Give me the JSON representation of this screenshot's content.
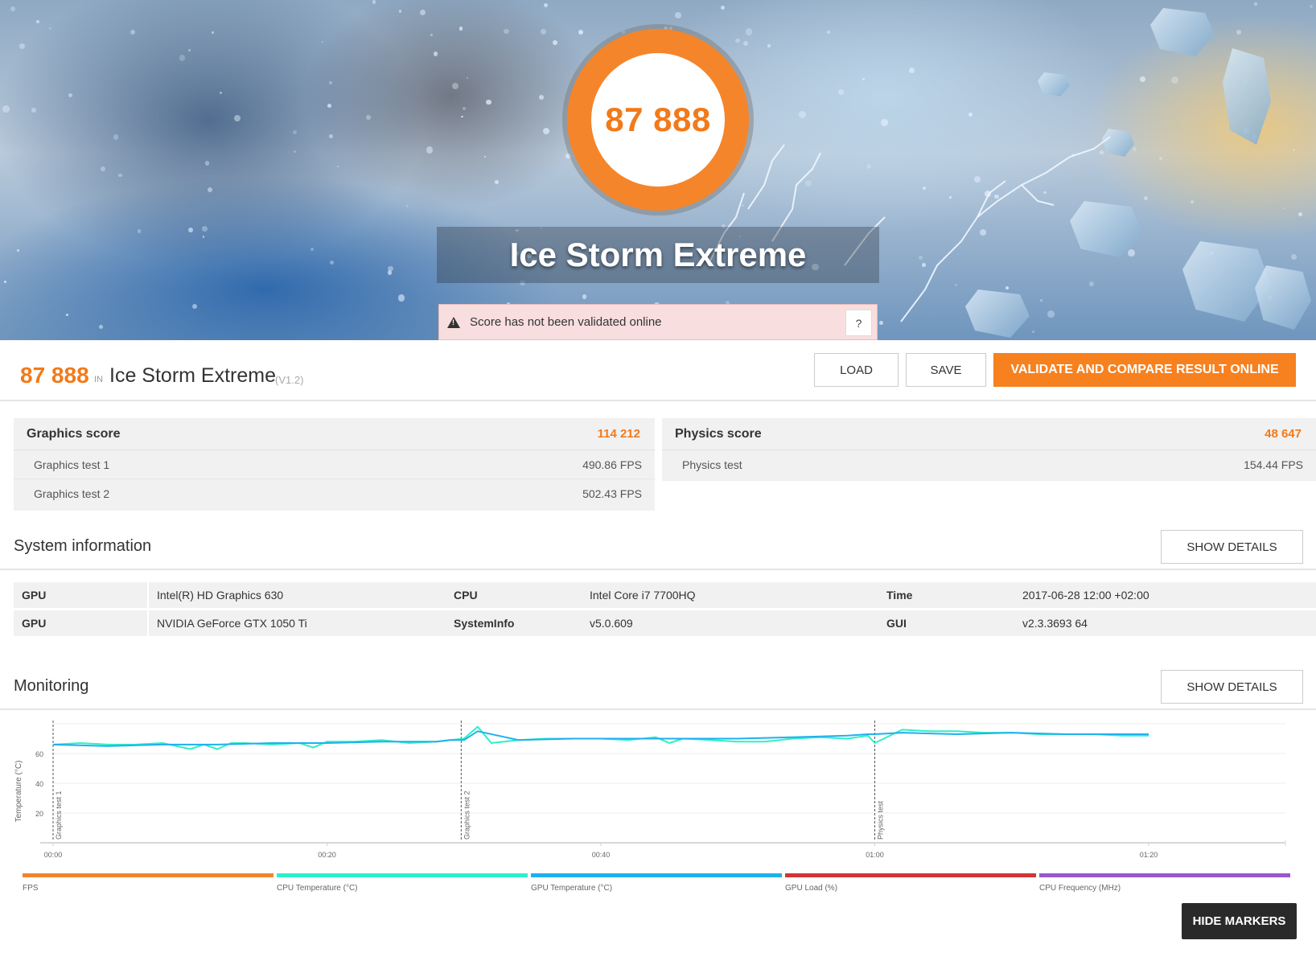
{
  "hero": {
    "score": "87 888",
    "title": "Ice Storm Extreme",
    "validation_message": "Score has not been validated online",
    "help_label": "?"
  },
  "result": {
    "score": "87 888",
    "in_label": "IN",
    "benchmark": "Ice Storm Extreme",
    "version": "(V1.2)",
    "load_label": "LOAD",
    "save_label": "SAVE",
    "validate_label": "VALIDATE AND COMPARE RESULT ONLINE"
  },
  "graphics": {
    "label": "Graphics score",
    "score": "114 212",
    "tests": [
      {
        "name": "Graphics test 1",
        "value": "490.86 FPS"
      },
      {
        "name": "Graphics test 2",
        "value": "502.43 FPS"
      }
    ]
  },
  "physics": {
    "label": "Physics score",
    "score": "48 647",
    "tests": [
      {
        "name": "Physics test",
        "value": "154.44 FPS"
      }
    ]
  },
  "system_info": {
    "title": "System information",
    "details_label": "SHOW DETAILS",
    "rows": [
      [
        {
          "k": "GPU",
          "v": "Intel(R) HD Graphics 630"
        },
        {
          "k": "CPU",
          "v": "Intel Core i7 7700HQ"
        },
        {
          "k": "Time",
          "v": "2017-06-28 12:00 +02:00"
        }
      ],
      [
        {
          "k": "GPU",
          "v": "NVIDIA GeForce GTX 1050 Ti"
        },
        {
          "k": "SystemInfo",
          "v": "v5.0.609"
        },
        {
          "k": "GUI",
          "v": "v2.3.3693 64"
        }
      ]
    ]
  },
  "monitoring": {
    "title": "Monitoring",
    "details_label": "SHOW DETAILS",
    "hide_markers_label": "HIDE MARKERS",
    "y_axis_label": "Temperature (°C)",
    "y_ticks": [
      "20",
      "40",
      "60"
    ],
    "x_ticks": [
      "00:00",
      "00:20",
      "00:40",
      "01:00",
      "01:20"
    ],
    "markers": [
      "Graphics test 1",
      "Graphics test 2",
      "Physics test"
    ],
    "legend": [
      {
        "name": "FPS",
        "color": "#f0852d"
      },
      {
        "name": "CPU Temperature (°C)",
        "color": "#2ef0c8"
      },
      {
        "name": "GPU Temperature (°C)",
        "color": "#1fb0ee"
      },
      {
        "name": "GPU Load (%)",
        "color": "#d33434"
      },
      {
        "name": "CPU Frequency (MHz)",
        "color": "#9a57cf"
      }
    ]
  },
  "chart_data": {
    "type": "line",
    "xlabel": "",
    "ylabel": "Temperature (°C)",
    "xlim": [
      0,
      90
    ],
    "ylim": [
      0,
      80
    ],
    "x_tick_seconds": [
      0,
      20,
      40,
      60,
      80
    ],
    "series": [
      {
        "name": "CPU Temperature (°C)",
        "color": "#2ef0c8",
        "x": [
          0,
          2,
          4,
          6,
          8,
          10,
          11,
          12,
          13,
          14,
          16,
          18,
          19,
          20,
          22,
          24,
          26,
          28,
          29,
          30,
          31,
          32,
          34,
          36,
          38,
          40,
          42,
          44,
          45,
          46,
          48,
          50,
          52,
          54,
          56,
          58,
          59.5,
          60,
          62,
          64,
          66,
          68,
          70,
          72,
          74,
          76,
          78,
          80
        ],
        "y": [
          66,
          67,
          66,
          66,
          67,
          63,
          66,
          63,
          67,
          67,
          66,
          67,
          64,
          68,
          68,
          69,
          67,
          68,
          69,
          70,
          78,
          67,
          69,
          70,
          70,
          70,
          69,
          71,
          67,
          70,
          69,
          68,
          68,
          70,
          71,
          70,
          72,
          67,
          76,
          75,
          75,
          74,
          74,
          73,
          73,
          73,
          72,
          72
        ]
      },
      {
        "name": "GPU Temperature (°C)",
        "color": "#1fb0ee",
        "x": [
          0,
          4,
          8,
          12,
          16,
          20,
          24,
          28,
          29,
          30,
          31,
          34,
          38,
          42,
          46,
          50,
          54,
          58,
          59.5,
          60,
          62,
          66,
          70,
          74,
          78,
          80
        ],
        "y": [
          66,
          65,
          66,
          66,
          67,
          67,
          68,
          68,
          69,
          69,
          75,
          69,
          70,
          70,
          70,
          70,
          71,
          72,
          73,
          73,
          74,
          73,
          74,
          73,
          73,
          73
        ]
      }
    ]
  }
}
